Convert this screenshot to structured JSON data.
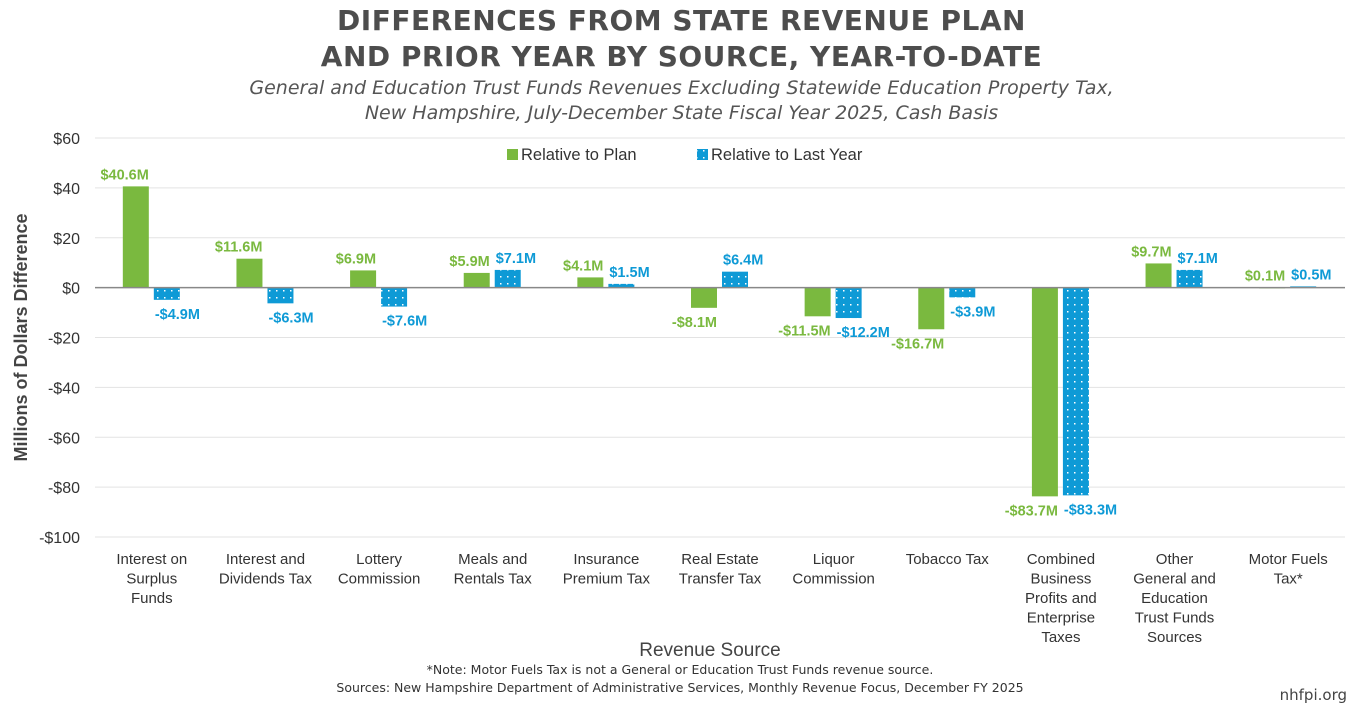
{
  "chart_data": {
    "type": "bar",
    "title_lines": [
      "DIFFERENCES FROM STATE REVENUE PLAN",
      "AND PRIOR YEAR BY SOURCE, YEAR-TO-DATE"
    ],
    "subtitle_lines": [
      "General and Education Trust Funds Revenues Excluding Statewide Education Property Tax,",
      "New Hampshire, July-December State Fiscal Year 2025, Cash Basis"
    ],
    "xlabel": "Revenue Source",
    "ylabel": "Millions of Dollars Difference",
    "ylim": [
      -100,
      60
    ],
    "yticks": [
      60,
      40,
      20,
      0,
      -20,
      -40,
      -60,
      -80,
      -100
    ],
    "ytick_labels": [
      "$60",
      "$40",
      "$20",
      "$0",
      "-$20",
      "-$40",
      "-$60",
      "-$80",
      "-$100"
    ],
    "legend_position": "top",
    "categories": [
      [
        "Interest on",
        "Surplus",
        "Funds"
      ],
      [
        "Interest and",
        "Dividends Tax"
      ],
      [
        "Lottery",
        "Commission"
      ],
      [
        "Meals and",
        "Rentals Tax"
      ],
      [
        "Insurance",
        "Premium Tax"
      ],
      [
        "Real Estate",
        "Transfer Tax"
      ],
      [
        "Liquor",
        "Commission"
      ],
      [
        "Tobacco Tax"
      ],
      [
        "Combined",
        "Business",
        "Profits and",
        "Enterprise",
        "Taxes"
      ],
      [
        "Other",
        "General and",
        "Education",
        "Trust Funds",
        "Sources"
      ],
      [
        "Motor Fuels",
        "Tax*"
      ]
    ],
    "series": [
      {
        "name": "Relative to Plan",
        "color": "#7ab93f",
        "values": [
          40.6,
          11.6,
          6.9,
          5.9,
          4.1,
          -8.1,
          -11.5,
          -16.7,
          -83.7,
          9.7,
          0.1
        ],
        "labels": [
          "$40.6M",
          "$11.6M",
          "$6.9M",
          "$5.9M",
          "$4.1M",
          "-$8.1M",
          "-$11.5M",
          "-$16.7M",
          "-$83.7M",
          "$9.7M",
          "$0.1M"
        ]
      },
      {
        "name": "Relative to Last Year",
        "color": "#0e9ad6",
        "values": [
          -4.9,
          -6.3,
          -7.6,
          7.1,
          1.5,
          6.4,
          -12.2,
          -3.9,
          -83.3,
          7.1,
          0.5
        ],
        "labels": [
          "-$4.9M",
          "-$6.3M",
          "-$7.6M",
          "$7.1M",
          "$1.5M",
          "$6.4M",
          "-$12.2M",
          "-$3.9M",
          "-$83.3M",
          "$7.1M",
          "$0.5M"
        ]
      }
    ],
    "grid": true
  },
  "footer": {
    "note": "*Note: Motor Fuels Tax is not a General or Education Trust Funds revenue source.",
    "sources": "Sources: New Hampshire Department of Administrative Services, Monthly Revenue Focus, December FY 2025",
    "brand": "nhfpi.org"
  }
}
